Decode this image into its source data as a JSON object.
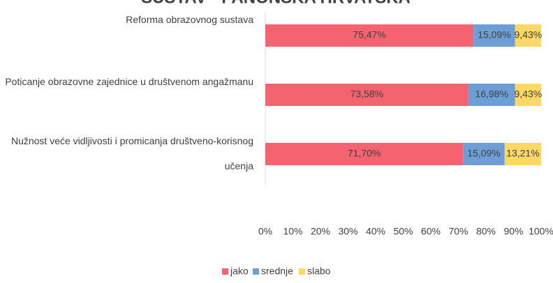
{
  "chart_data": {
    "type": "stacked_bar_horizontal",
    "title": "SUSTAV - PANONSKA HRVATSKA",
    "categories": [
      "Reforma obrazovnog sustava",
      "Poticanje obrazovne zajednice u društvenom angažmanu",
      "Nužnost veće vidljivosti i promicanja društveno-korisnog učenja"
    ],
    "series": [
      {
        "name": "jako",
        "color": "#f4636f",
        "values": [
          75.47,
          73.58,
          71.7
        ],
        "value_labels": [
          "75,47%",
          "73,58%",
          "71,70%"
        ]
      },
      {
        "name": "srednje",
        "color": "#6d9fd6",
        "values": [
          15.09,
          16.98,
          15.09
        ],
        "value_labels": [
          "15,09%",
          "16,98%",
          "15,09%"
        ]
      },
      {
        "name": "slabo",
        "color": "#fdd865",
        "values": [
          9.43,
          9.43,
          13.21
        ],
        "value_labels": [
          "9,43%",
          "9,43%",
          "13,21%"
        ]
      }
    ],
    "xlim": [
      0,
      100
    ],
    "xticks": [
      {
        "value": 0,
        "label": "0%"
      },
      {
        "value": 10,
        "label": "10%"
      },
      {
        "value": 20,
        "label": "20%"
      },
      {
        "value": 30,
        "label": "30%"
      },
      {
        "value": 40,
        "label": "40%"
      },
      {
        "value": 50,
        "label": "50%"
      },
      {
        "value": 60,
        "label": "60%"
      },
      {
        "value": 70,
        "label": "70%"
      },
      {
        "value": 80,
        "label": "80%"
      },
      {
        "value": 90,
        "label": "90%"
      },
      {
        "value": 100,
        "label": "100%"
      }
    ],
    "legend": "bottom"
  }
}
